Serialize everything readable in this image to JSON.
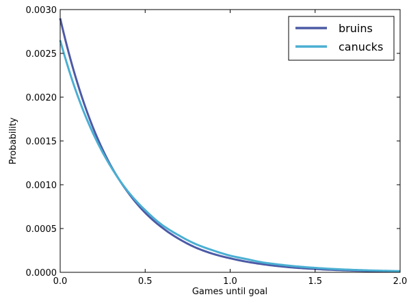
{
  "chart_data": {
    "type": "line",
    "title": "",
    "xlabel": "Games until goal",
    "ylabel": "Probability",
    "xlim": [
      0.0,
      2.0
    ],
    "ylim": [
      0.0,
      0.003
    ],
    "grid": false,
    "legend_position": "top-right",
    "x_ticks": [
      "0.0",
      "0.5",
      "1.0",
      "1.5",
      "2.0"
    ],
    "y_ticks": [
      "0.0000",
      "0.0005",
      "0.0010",
      "0.0015",
      "0.0020",
      "0.0025",
      "0.0030"
    ],
    "x": [
      0.0,
      0.1,
      0.2,
      0.3,
      0.4,
      0.5,
      0.6,
      0.7,
      0.8,
      0.9,
      1.0,
      1.1,
      1.2,
      1.3,
      1.4,
      1.5,
      1.6,
      1.7,
      1.8,
      1.9,
      2.0
    ],
    "series": [
      {
        "name": "bruins",
        "color": "#4c5aa6",
        "values": [
          0.0029,
          0.00217,
          0.00162,
          0.00121,
          0.00091,
          0.00068,
          0.00051,
          0.00038,
          0.00028,
          0.00021,
          0.00016,
          0.00012,
          9e-05,
          6.7e-05,
          5e-05,
          3.8e-05,
          2.8e-05,
          2.1e-05,
          1.6e-05,
          1.2e-05,
          9e-06
        ]
      },
      {
        "name": "canucks",
        "color": "#4aafd2",
        "values": [
          0.00265,
          0.00203,
          0.00156,
          0.0012,
          0.00092,
          0.00071,
          0.00054,
          0.00042,
          0.00032,
          0.00025,
          0.00019,
          0.00015,
          0.00011,
          8.6e-05,
          6.6e-05,
          5.1e-05,
          3.9e-05,
          3e-05,
          2.3e-05,
          1.8e-05,
          1.4e-05
        ]
      }
    ]
  }
}
